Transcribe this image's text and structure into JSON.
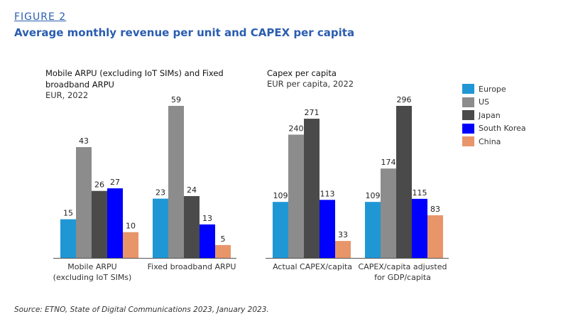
{
  "figure": {
    "label": "FIGURE 2",
    "title": "Average monthly revenue per unit and CAPEX per capita",
    "source": "Source: ETNO, State of Digital Communications 2023, January 2023."
  },
  "legend": {
    "items": [
      {
        "label": "Europe",
        "color": "#1f97d4"
      },
      {
        "label": "US",
        "color": "#8c8c8c"
      },
      {
        "label": "Japan",
        "color": "#4a4a4a"
      },
      {
        "label": "South Korea",
        "color": "#0000ff"
      },
      {
        "label": "China",
        "color": "#e8956a"
      }
    ]
  },
  "chart_data": [
    {
      "type": "bar",
      "title": "Mobile ARPU (excluding IoT SIMs) and Fixed broadband ARPU",
      "title_lines": [
        "Mobile ARPU (excluding IoT SIMs) and Fixed",
        "broadband ARPU"
      ],
      "subtitle": "EUR, 2022",
      "categories": [
        "Mobile ARPU (excluding IoT SIMs)",
        "Fixed broadband ARPU"
      ],
      "category_lines": [
        [
          "Mobile ARPU",
          "(excluding IoT SIMs)"
        ],
        [
          "Fixed broadband ARPU"
        ]
      ],
      "series": [
        {
          "name": "Europe",
          "values": [
            15,
            23
          ]
        },
        {
          "name": "US",
          "values": [
            43,
            59
          ]
        },
        {
          "name": "Japan",
          "values": [
            26,
            24
          ]
        },
        {
          "name": "South Korea",
          "values": [
            27,
            13
          ]
        },
        {
          "name": "China",
          "values": [
            10,
            5
          ]
        }
      ],
      "ylim": [
        0,
        59
      ],
      "grid": false,
      "legend": "right"
    },
    {
      "type": "bar",
      "title": "Capex per capita",
      "title_lines": [
        "Capex per capita"
      ],
      "subtitle": "EUR per capita, 2022",
      "categories": [
        "Actual CAPEX/capita",
        "CAPEX/capita adjusted for GDP/capita"
      ],
      "category_lines": [
        [
          "Actual CAPEX/capita"
        ],
        [
          "CAPEX/capita adjusted",
          "for GDP/capita"
        ]
      ],
      "series": [
        {
          "name": "Europe",
          "values": [
            109,
            109
          ]
        },
        {
          "name": "US",
          "values": [
            240,
            174
          ]
        },
        {
          "name": "Japan",
          "values": [
            271,
            296
          ]
        },
        {
          "name": "South Korea",
          "values": [
            113,
            115
          ]
        },
        {
          "name": "China",
          "values": [
            33,
            83
          ]
        }
      ],
      "ylim": [
        0,
        296
      ],
      "grid": false,
      "legend": "right"
    }
  ]
}
